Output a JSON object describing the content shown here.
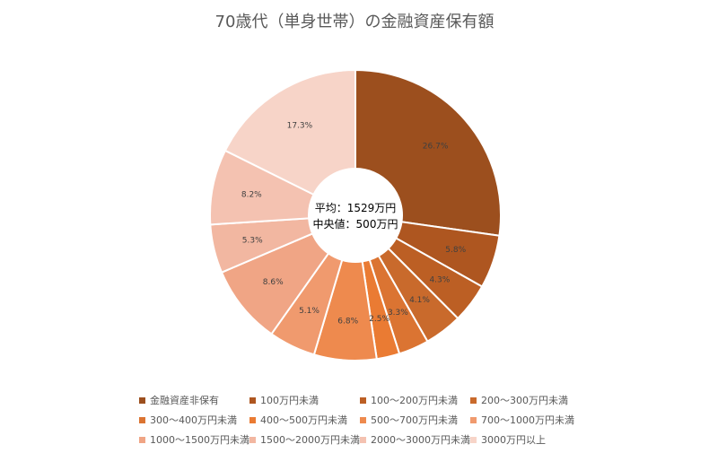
{
  "chart_data": {
    "type": "pie",
    "title": "70歳代（単身世帯）の金融資産保有額",
    "center_text": [
      "平均：1529万円",
      "中央値：500万円"
    ],
    "legend_position": "bottom",
    "categories": [
      "金融資産非保有",
      "100万円未満",
      "100〜200万円未満",
      "200〜300万円未満",
      "300〜400万円未満",
      "400〜500万円未満",
      "500〜700万円未満",
      "700〜1000万円未満",
      "1000〜1500万円未満",
      "1500〜2000万円未満",
      "2000〜3000万円未満",
      "3000万円以上"
    ],
    "values": [
      26.7,
      5.8,
      4.3,
      4.1,
      3.3,
      2.5,
      6.8,
      5.1,
      8.6,
      5.3,
      8.2,
      17.3
    ],
    "data_labels": [
      "26.7%",
      "5.8%",
      "4.3%",
      "4.1%",
      "3.3%",
      "2.5%",
      "6.8%",
      "5.1%",
      "8.6%",
      "5.3%",
      "8.2%",
      "17.3%"
    ],
    "colors": [
      "#9C4F1E",
      "#AE5620",
      "#BC5F24",
      "#C96A2C",
      "#DB7432",
      "#EA7B33",
      "#EE8A4E",
      "#F09A6E",
      "#F0A585",
      "#F2B7A1",
      "#F4C2B1",
      "#F7D4C8"
    ]
  }
}
